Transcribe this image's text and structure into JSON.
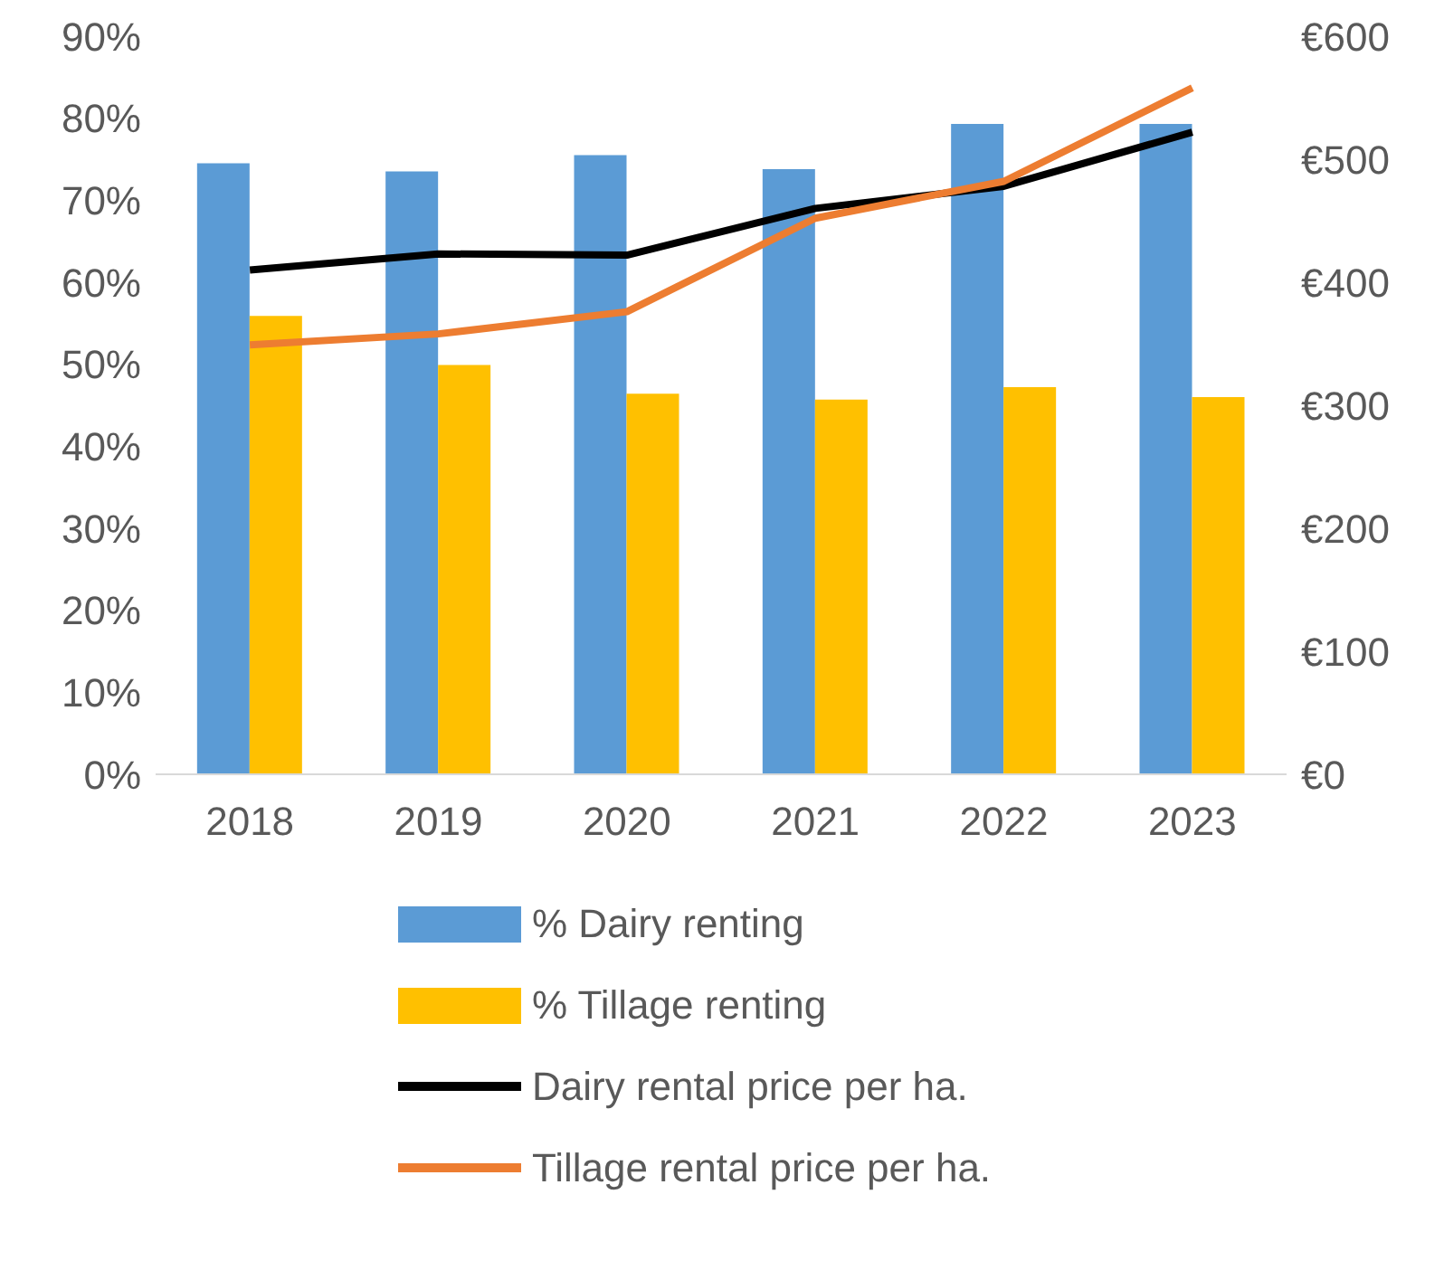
{
  "chart_data": {
    "type": "bar",
    "categories": [
      "2018",
      "2019",
      "2020",
      "2021",
      "2022",
      "2023"
    ],
    "series": [
      {
        "name": "% Dairy renting",
        "color": "#5b9bd5",
        "values": [
          74.5,
          73.5,
          75.5,
          73.8,
          79.3,
          79.3
        ]
      },
      {
        "name": "% Tillage renting",
        "color": "#ffc000",
        "values": [
          55.9,
          49.9,
          46.4,
          45.7,
          47.2,
          46.0
        ]
      },
      {
        "name": "Dairy rental price per ha.",
        "type": "line",
        "axis": "y2",
        "color": "#000000",
        "values": [
          410,
          423,
          422,
          460,
          478,
          522
        ]
      },
      {
        "name": "Tillage rental price per ha.",
        "type": "line",
        "axis": "y2",
        "color": "#ed7d31",
        "values": [
          349,
          358,
          376,
          452,
          482,
          558
        ]
      }
    ],
    "ylim": [
      0,
      90
    ],
    "yticks": [
      {
        "value": 0,
        "label": "0%"
      },
      {
        "value": 10,
        "label": "10%"
      },
      {
        "value": 20,
        "label": "20%"
      },
      {
        "value": 30,
        "label": "30%"
      },
      {
        "value": 40,
        "label": "40%"
      },
      {
        "value": 50,
        "label": "50%"
      },
      {
        "value": 60,
        "label": "60%"
      },
      {
        "value": 70,
        "label": "70%"
      },
      {
        "value": 80,
        "label": "80%"
      },
      {
        "value": 90,
        "label": "90%"
      }
    ],
    "y2lim": [
      0,
      600
    ],
    "y2ticks": [
      {
        "value": 0,
        "label": "€0"
      },
      {
        "value": 100,
        "label": "€100"
      },
      {
        "value": 200,
        "label": "€200"
      },
      {
        "value": 300,
        "label": "€300"
      },
      {
        "value": 400,
        "label": "€400"
      },
      {
        "value": 500,
        "label": "€500"
      },
      {
        "value": 600,
        "label": "€600"
      }
    ],
    "legend": "bottom",
    "grid": false,
    "marker": "none",
    "line_style": "solid"
  }
}
